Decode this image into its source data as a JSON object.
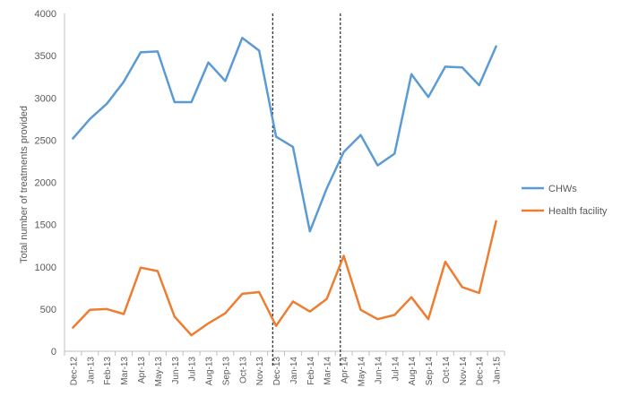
{
  "chart_data": {
    "type": "line",
    "title": "",
    "xlabel": "",
    "ylabel": "Total number of treatments provided",
    "ylim": [
      0,
      4000
    ],
    "y_ticks": [
      0,
      500,
      1000,
      1500,
      2000,
      2500,
      3000,
      3500,
      4000
    ],
    "grid": false,
    "legend_position": "right",
    "categories": [
      "Dec-12",
      "Jan-13",
      "Feb-13",
      "Mar-13",
      "Apr-13",
      "May-13",
      "Jun-13",
      "Jul-13",
      "Aug-13",
      "Sep-13",
      "Oct-13",
      "Nov-13",
      "Dec-13",
      "Jan-14",
      "Feb-14",
      "Mar-14",
      "Apr-14",
      "May-14",
      "Jun-14",
      "Jul-14",
      "Aug-14",
      "Sep-14",
      "Oct-14",
      "Nov-14",
      "Dec-14",
      "Jan-15"
    ],
    "series": [
      {
        "name": "CHWs",
        "color": "#5B9BD5",
        "values": [
          2520,
          2750,
          2930,
          3190,
          3540,
          3550,
          2950,
          2950,
          3420,
          3200,
          3710,
          3560,
          2540,
          2420,
          1420,
          1930,
          2360,
          2560,
          2200,
          2340,
          3280,
          3010,
          3370,
          3360,
          3150,
          3610
        ]
      },
      {
        "name": "Health facility",
        "color": "#ED7D31",
        "values": [
          280,
          490,
          500,
          440,
          990,
          950,
          410,
          190,
          330,
          450,
          680,
          700,
          300,
          590,
          470,
          620,
          1130,
          490,
          380,
          430,
          640,
          380,
          1060,
          760,
          690,
          1540
        ]
      }
    ],
    "vertical_markers": [
      "Dec-13",
      "Apr-14"
    ]
  }
}
